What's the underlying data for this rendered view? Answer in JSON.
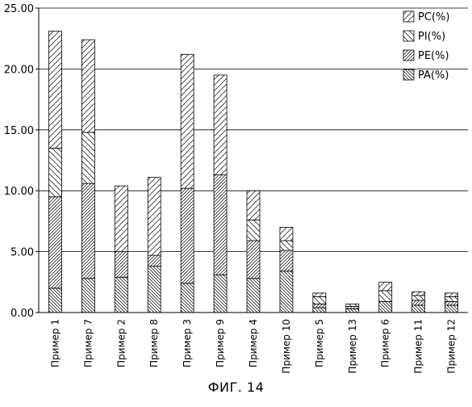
{
  "figure": {
    "caption": "ФИГ. 14"
  },
  "chart_data": {
    "type": "bar",
    "stacked": true,
    "title": "",
    "xlabel": "",
    "ylabel": "",
    "ylim": [
      0,
      25
    ],
    "yticks": [
      "0.00",
      "5.00",
      "10.00",
      "15.00",
      "20.00",
      "25.00"
    ],
    "grid": true,
    "legend_position": "top-right",
    "categories": [
      "Пример 1",
      "Пример 7",
      "Пример 2",
      "Пример 8",
      "Пример 3",
      "Пример 9",
      "Пример 4",
      "Пример 10",
      "Пример 5",
      "Пример 13",
      "Пример 6",
      "Пример 11",
      "Пример 12"
    ],
    "series": [
      {
        "name": "PA(%)",
        "pattern": "dense-backslash",
        "values": [
          2.0,
          2.8,
          2.9,
          3.8,
          2.4,
          3.1,
          2.8,
          3.4,
          0.4,
          0.3,
          0.9,
          0.6,
          0.6
        ]
      },
      {
        "name": "PE(%)",
        "pattern": "dense-slash",
        "values": [
          7.5,
          7.8,
          2.1,
          0.9,
          7.8,
          8.2,
          3.1,
          1.7,
          0.3,
          0.2,
          0.0,
          0.4,
          0.3
        ]
      },
      {
        "name": "PI(%)",
        "pattern": "sparse-backslash",
        "values": [
          4.0,
          4.2,
          0.0,
          0.0,
          0.0,
          0.0,
          1.7,
          0.8,
          0.6,
          0.2,
          0.9,
          0.4,
          0.4
        ]
      },
      {
        "name": "PC(%)",
        "pattern": "sparse-slash",
        "values": [
          9.6,
          7.6,
          5.4,
          6.4,
          11.0,
          8.2,
          2.4,
          1.1,
          0.3,
          0.0,
          0.7,
          0.3,
          0.3
        ]
      }
    ]
  }
}
